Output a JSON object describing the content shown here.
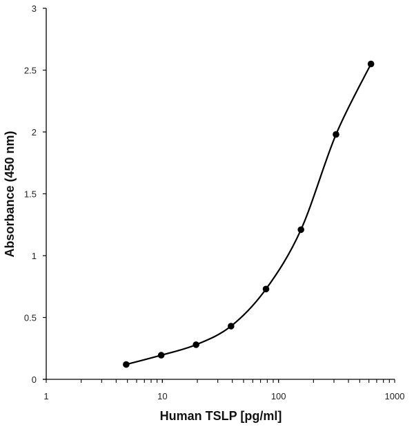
{
  "chart_data": {
    "type": "line",
    "title": "",
    "xlabel": "Human TSLP [pg/ml]",
    "ylabel": "Absorbance (450 nm)",
    "x_scale": "log",
    "xlim": [
      1,
      1000
    ],
    "ylim": [
      0,
      3
    ],
    "x_ticks": [
      "1",
      "10",
      "100",
      "1000"
    ],
    "y_ticks": [
      "0",
      "0.5",
      "1",
      "1.5",
      "2",
      "2.5",
      "3"
    ],
    "grid": false,
    "legend": "none",
    "line_color": "#000000",
    "marker": "circle",
    "smoothed": true,
    "series": [
      {
        "x": [
          4.88,
          9.77,
          19.5,
          39,
          78,
          156,
          312.5,
          625
        ],
        "y": [
          0.12,
          0.195,
          0.28,
          0.43,
          0.73,
          1.21,
          1.98,
          2.55
        ]
      }
    ]
  }
}
